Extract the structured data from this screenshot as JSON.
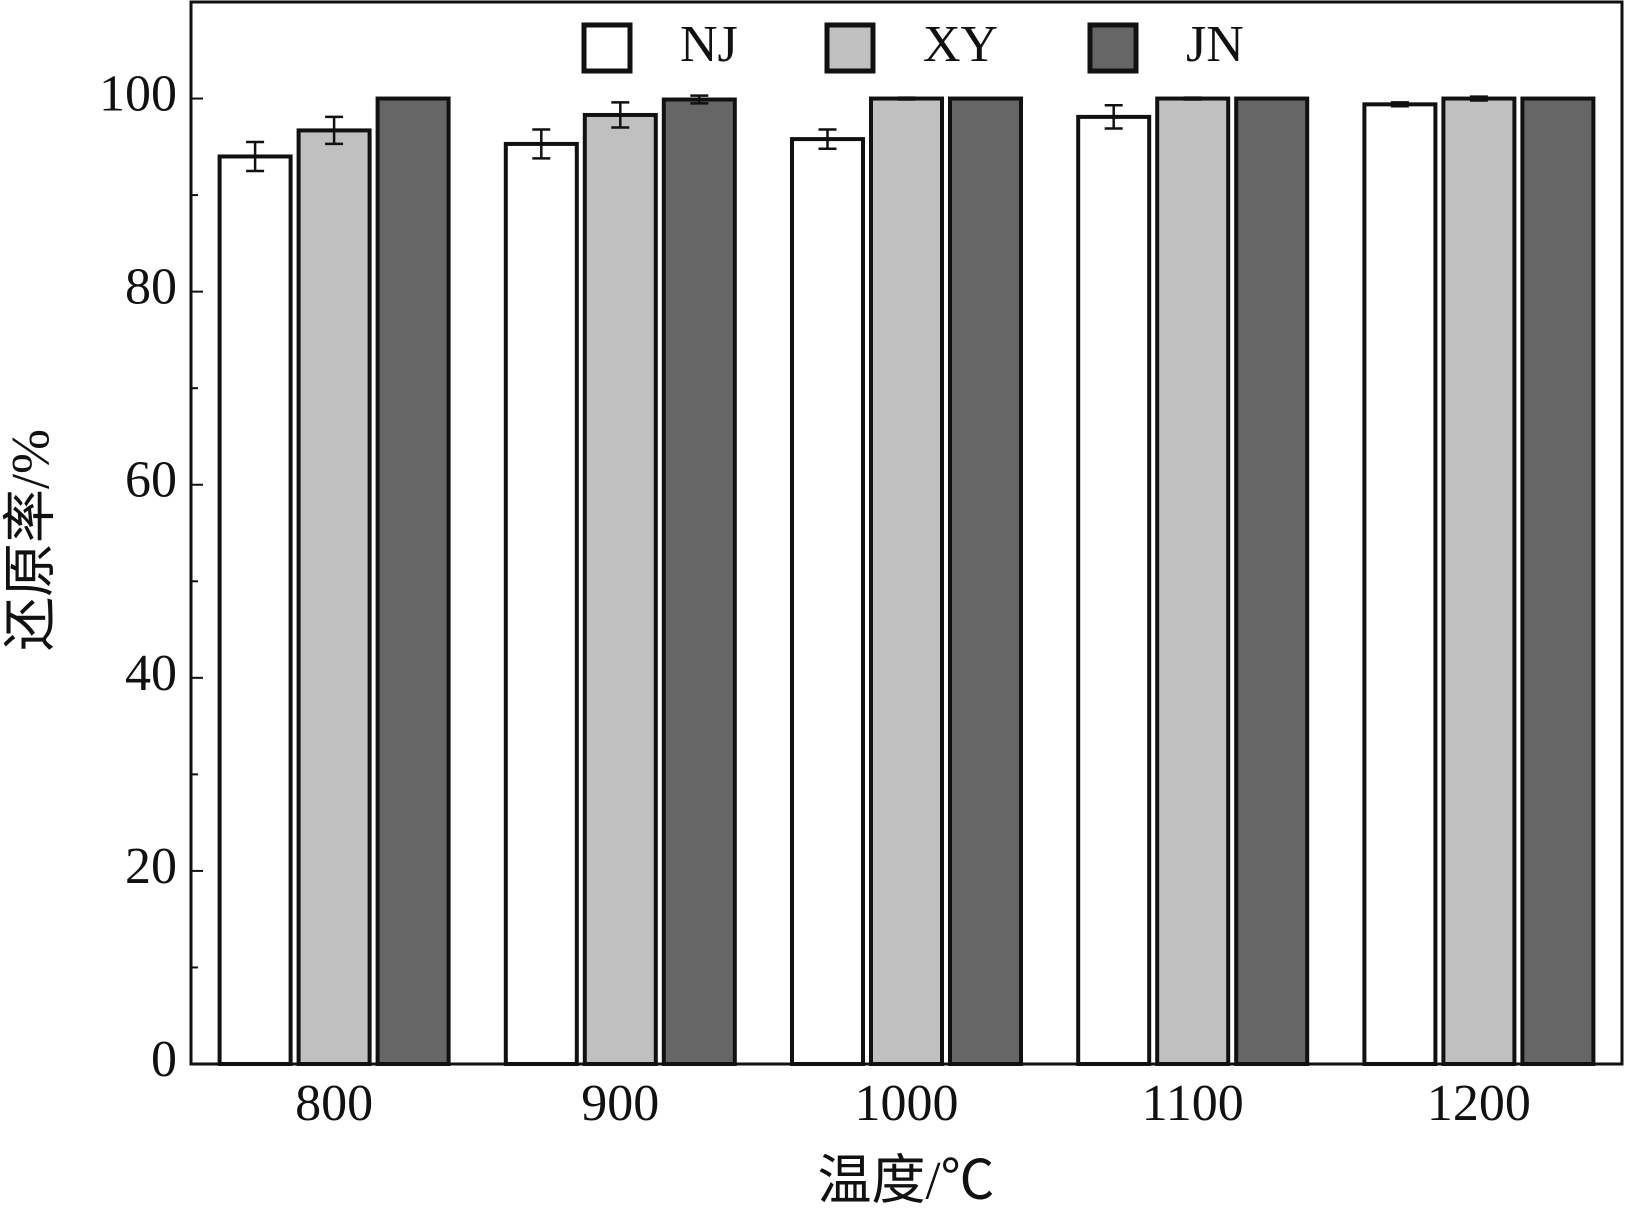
{
  "chart_data": {
    "type": "bar",
    "xlabel": "温度/℃",
    "ylabel": "还原率/%",
    "categories": [
      "800",
      "900",
      "1000",
      "1100",
      "1200"
    ],
    "series": [
      {
        "name": "NJ",
        "color": "#ffffff",
        "values": [
          94.0,
          95.3,
          95.8,
          98.1,
          99.4
        ],
        "errors": [
          1.5,
          1.5,
          1.0,
          1.2,
          0.2
        ]
      },
      {
        "name": "XY",
        "color": "#c0c0c0",
        "values": [
          96.7,
          98.3,
          100,
          100,
          100
        ],
        "errors": [
          1.4,
          1.3,
          0.1,
          0.1,
          0.2
        ]
      },
      {
        "name": "JN",
        "color": "#666666",
        "values": [
          100,
          99.9,
          100,
          100,
          100
        ],
        "errors": [
          0,
          0.4,
          0,
          0,
          0
        ]
      }
    ],
    "ylim": [
      0,
      110
    ],
    "yticks": [
      0,
      20,
      40,
      60,
      80,
      100
    ],
    "yticks_minor": [
      10,
      30,
      50,
      70,
      90
    ],
    "legend": "top"
  }
}
